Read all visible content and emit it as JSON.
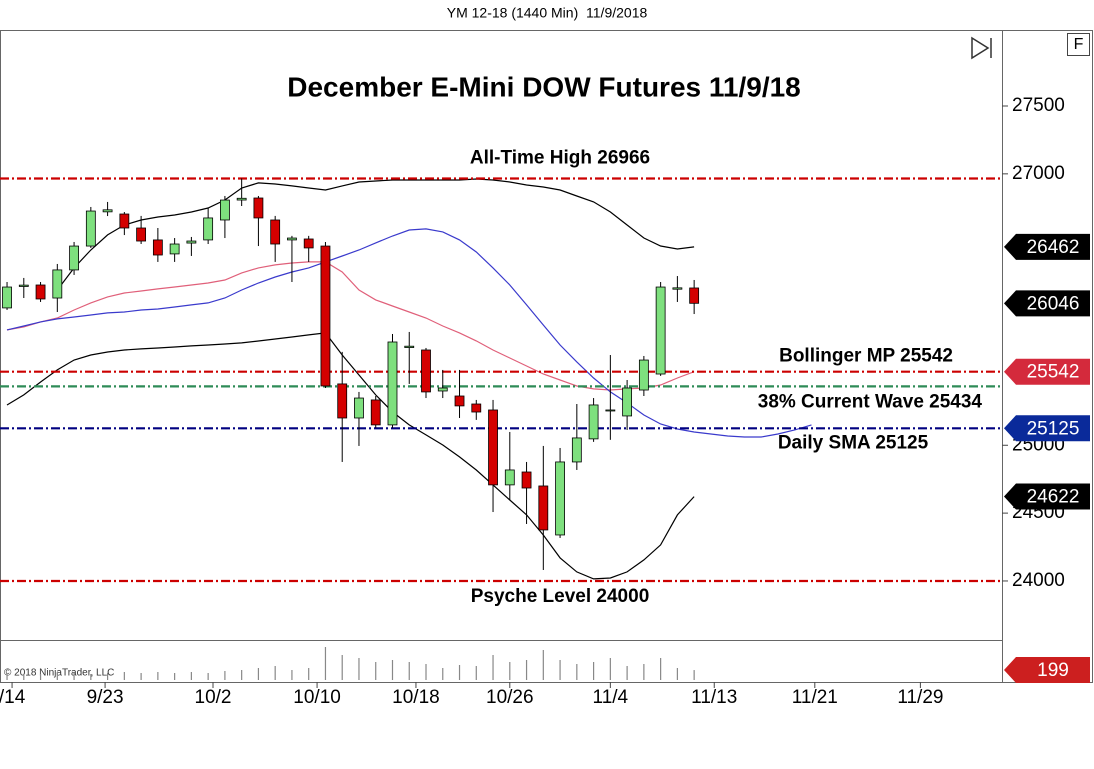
{
  "header": "YM 12-18 (1440 Min)  11/9/2018",
  "chart_data": {
    "type": "candlestick",
    "title": "December E-Mini DOW Futures 11/9/18",
    "open": [
      26012,
      26170,
      26181,
      26085,
      26292,
      26468,
      26720,
      26704,
      26601,
      26513,
      26410,
      26490,
      26513,
      26660,
      26807,
      26822,
      26660,
      26513,
      26520,
      26468,
      25452,
      25201,
      25334,
      25150,
      25720,
      25702,
      25400,
      25363,
      25304,
      25260,
      24708,
      24803,
      24700,
      24339,
      24877,
      25047,
      25253,
      25216,
      25407,
      25525,
      26150,
      26159
    ],
    "high": [
      26203,
      26233,
      26203,
      26336,
      26498,
      26756,
      26793,
      26719,
      26690,
      26601,
      26527,
      26535,
      26749,
      26837,
      26966,
      26837,
      26690,
      26543,
      26543,
      26498,
      25688,
      25393,
      25363,
      25820,
      25835,
      25717,
      25555,
      25555,
      25334,
      25334,
      25098,
      24877,
      24995,
      24980,
      25304,
      25348,
      25665,
      25481,
      25658,
      26203,
      26247,
      26218
    ],
    "low": [
      25997,
      26085,
      26056,
      25982,
      26255,
      26454,
      26689,
      26549,
      26483,
      26351,
      26351,
      26395,
      26483,
      26527,
      26763,
      26468,
      26351,
      26203,
      26351,
      25422,
      24877,
      24995,
      25128,
      25128,
      25452,
      25348,
      25348,
      25201,
      25187,
      24508,
      24597,
      24420,
      24081,
      24317,
      24818,
      25025,
      25040,
      25113,
      25363,
      25511,
      26056,
      25967
    ],
    "close": [
      26166,
      26180,
      26078,
      26292,
      26468,
      26726,
      26735,
      26601,
      26505,
      26402,
      26483,
      26505,
      26675,
      26807,
      26820,
      26675,
      26483,
      26527,
      26454,
      25437,
      25201,
      25348,
      25150,
      25761,
      25730,
      25393,
      25422,
      25290,
      25245,
      24708,
      24818,
      24685,
      24376,
      24877,
      25054,
      25297,
      25260,
      25422,
      25628,
      26166,
      26160,
      26046
    ],
    "up_color": "#7ee07e",
    "down_color": "#d40000",
    "tag_color": "#000000",
    "overlays": [
      {
        "color": "#000000",
        "tag_color": "#000000",
        "values": [
          null,
          null,
          null,
          26144,
          26307,
          26439,
          26550,
          26623,
          26660,
          26682,
          26697,
          26719,
          26748,
          26807,
          26896,
          26933,
          26925,
          26911,
          26896,
          26881,
          26911,
          26940,
          26947,
          26955,
          26955,
          26955,
          26955,
          26955,
          26962,
          26955,
          26940,
          26918,
          26903,
          26881,
          26837,
          26793,
          26719,
          26623,
          26527,
          26468,
          26446,
          26462
        ]
      },
      {
        "color": "#e0607a",
        "values": [
          25850,
          25872,
          25909,
          25938,
          25997,
          26049,
          26093,
          26122,
          26137,
          26152,
          26166,
          26181,
          26196,
          26218,
          26270,
          26307,
          26329,
          26343,
          26351,
          26351,
          26277,
          26144,
          26071,
          26026,
          25982,
          25938,
          25879,
          25828,
          25769,
          25702,
          25643,
          25584,
          25525,
          25481,
          25437,
          25415,
          25407,
          25415,
          25422,
          25444,
          25496,
          25542
        ]
      },
      {
        "color": "#000000",
        "tag_color": "#000000",
        "values": [
          25297,
          25371,
          25466,
          25555,
          25628,
          25665,
          25687,
          25702,
          25710,
          25717,
          25724,
          25732,
          25739,
          25746,
          25754,
          25768,
          25783,
          25798,
          25813,
          25828,
          25665,
          25518,
          25371,
          25246,
          25150,
          25076,
          25002,
          24914,
          24818,
          24708,
          24597,
          24487,
          24339,
          24170,
          24067,
          24015,
          24022,
          24067,
          24155,
          24266,
          24487,
          24622
        ]
      },
      {
        "color": "#3a3acc",
        "values": [
          25850,
          25879,
          25909,
          25931,
          25945,
          25960,
          25975,
          25982,
          25997,
          26004,
          26019,
          26034,
          26049,
          26085,
          26144,
          26196,
          26240,
          26277,
          26307,
          26351,
          26395,
          26439,
          26491,
          26542,
          26586,
          26594,
          26572,
          26513,
          26424,
          26307,
          26181,
          26034,
          25886,
          25739,
          25614,
          25496,
          25393,
          25312,
          25223,
          25157,
          25120,
          25098,
          25083,
          25068,
          25061,
          25061,
          25083,
          25113,
          25150
        ]
      }
    ],
    "levels": [
      {
        "label": "All-Time High 26966",
        "value": 26966,
        "color": "#cc0000"
      },
      {
        "label": "Bollinger MP 25542",
        "value": 25542,
        "color": "#cc0000",
        "tag_color": "#d42a3c"
      },
      {
        "label": "38% Current Wave 25434",
        "value": 25434,
        "color": "#2e8b57"
      },
      {
        "label": "Daily SMA 25125",
        "value": 25125,
        "color": "#000080",
        "tag_color": "#0a2a9a"
      },
      {
        "label": "Psyche Level 24000",
        "value": 24000,
        "color": "#cc0000"
      }
    ],
    "xlim": [
      -0.42,
      59.37
    ],
    "xticks": [
      {
        "value": 0.3,
        "label": "/14"
      },
      {
        "value": 5.85,
        "label": "9/23"
      },
      {
        "value": 12.29,
        "label": "10/2"
      },
      {
        "value": 18.5,
        "label": "10/10"
      },
      {
        "value": 24.4,
        "label": "10/18"
      },
      {
        "value": 30.0,
        "label": "10/26"
      },
      {
        "value": 36.0,
        "label": "11/4"
      },
      {
        "value": 42.2,
        "label": "11/13"
      },
      {
        "value": 48.2,
        "label": "11/21"
      },
      {
        "value": 54.5,
        "label": "11/29"
      }
    ],
    "ylim": [
      23565,
      28060
    ],
    "yticks": [
      24000,
      24500,
      25000,
      27000,
      27500
    ],
    "volume": {
      "color": "#888888",
      "tag_color": "#cc1f1f",
      "ylim": [
        0,
        700
      ],
      "values": [
        120,
        120,
        120,
        160,
        140,
        120,
        140,
        160,
        140,
        160,
        140,
        160,
        140,
        180,
        200,
        240,
        280,
        200,
        240,
        660,
        500,
        440,
        360,
        400,
        360,
        320,
        240,
        300,
        280,
        500,
        360,
        400,
        600,
        400,
        320,
        360,
        440,
        280,
        320,
        440,
        240,
        199
      ]
    },
    "copyright": "© 2018 NinjaTrader, LLC"
  }
}
